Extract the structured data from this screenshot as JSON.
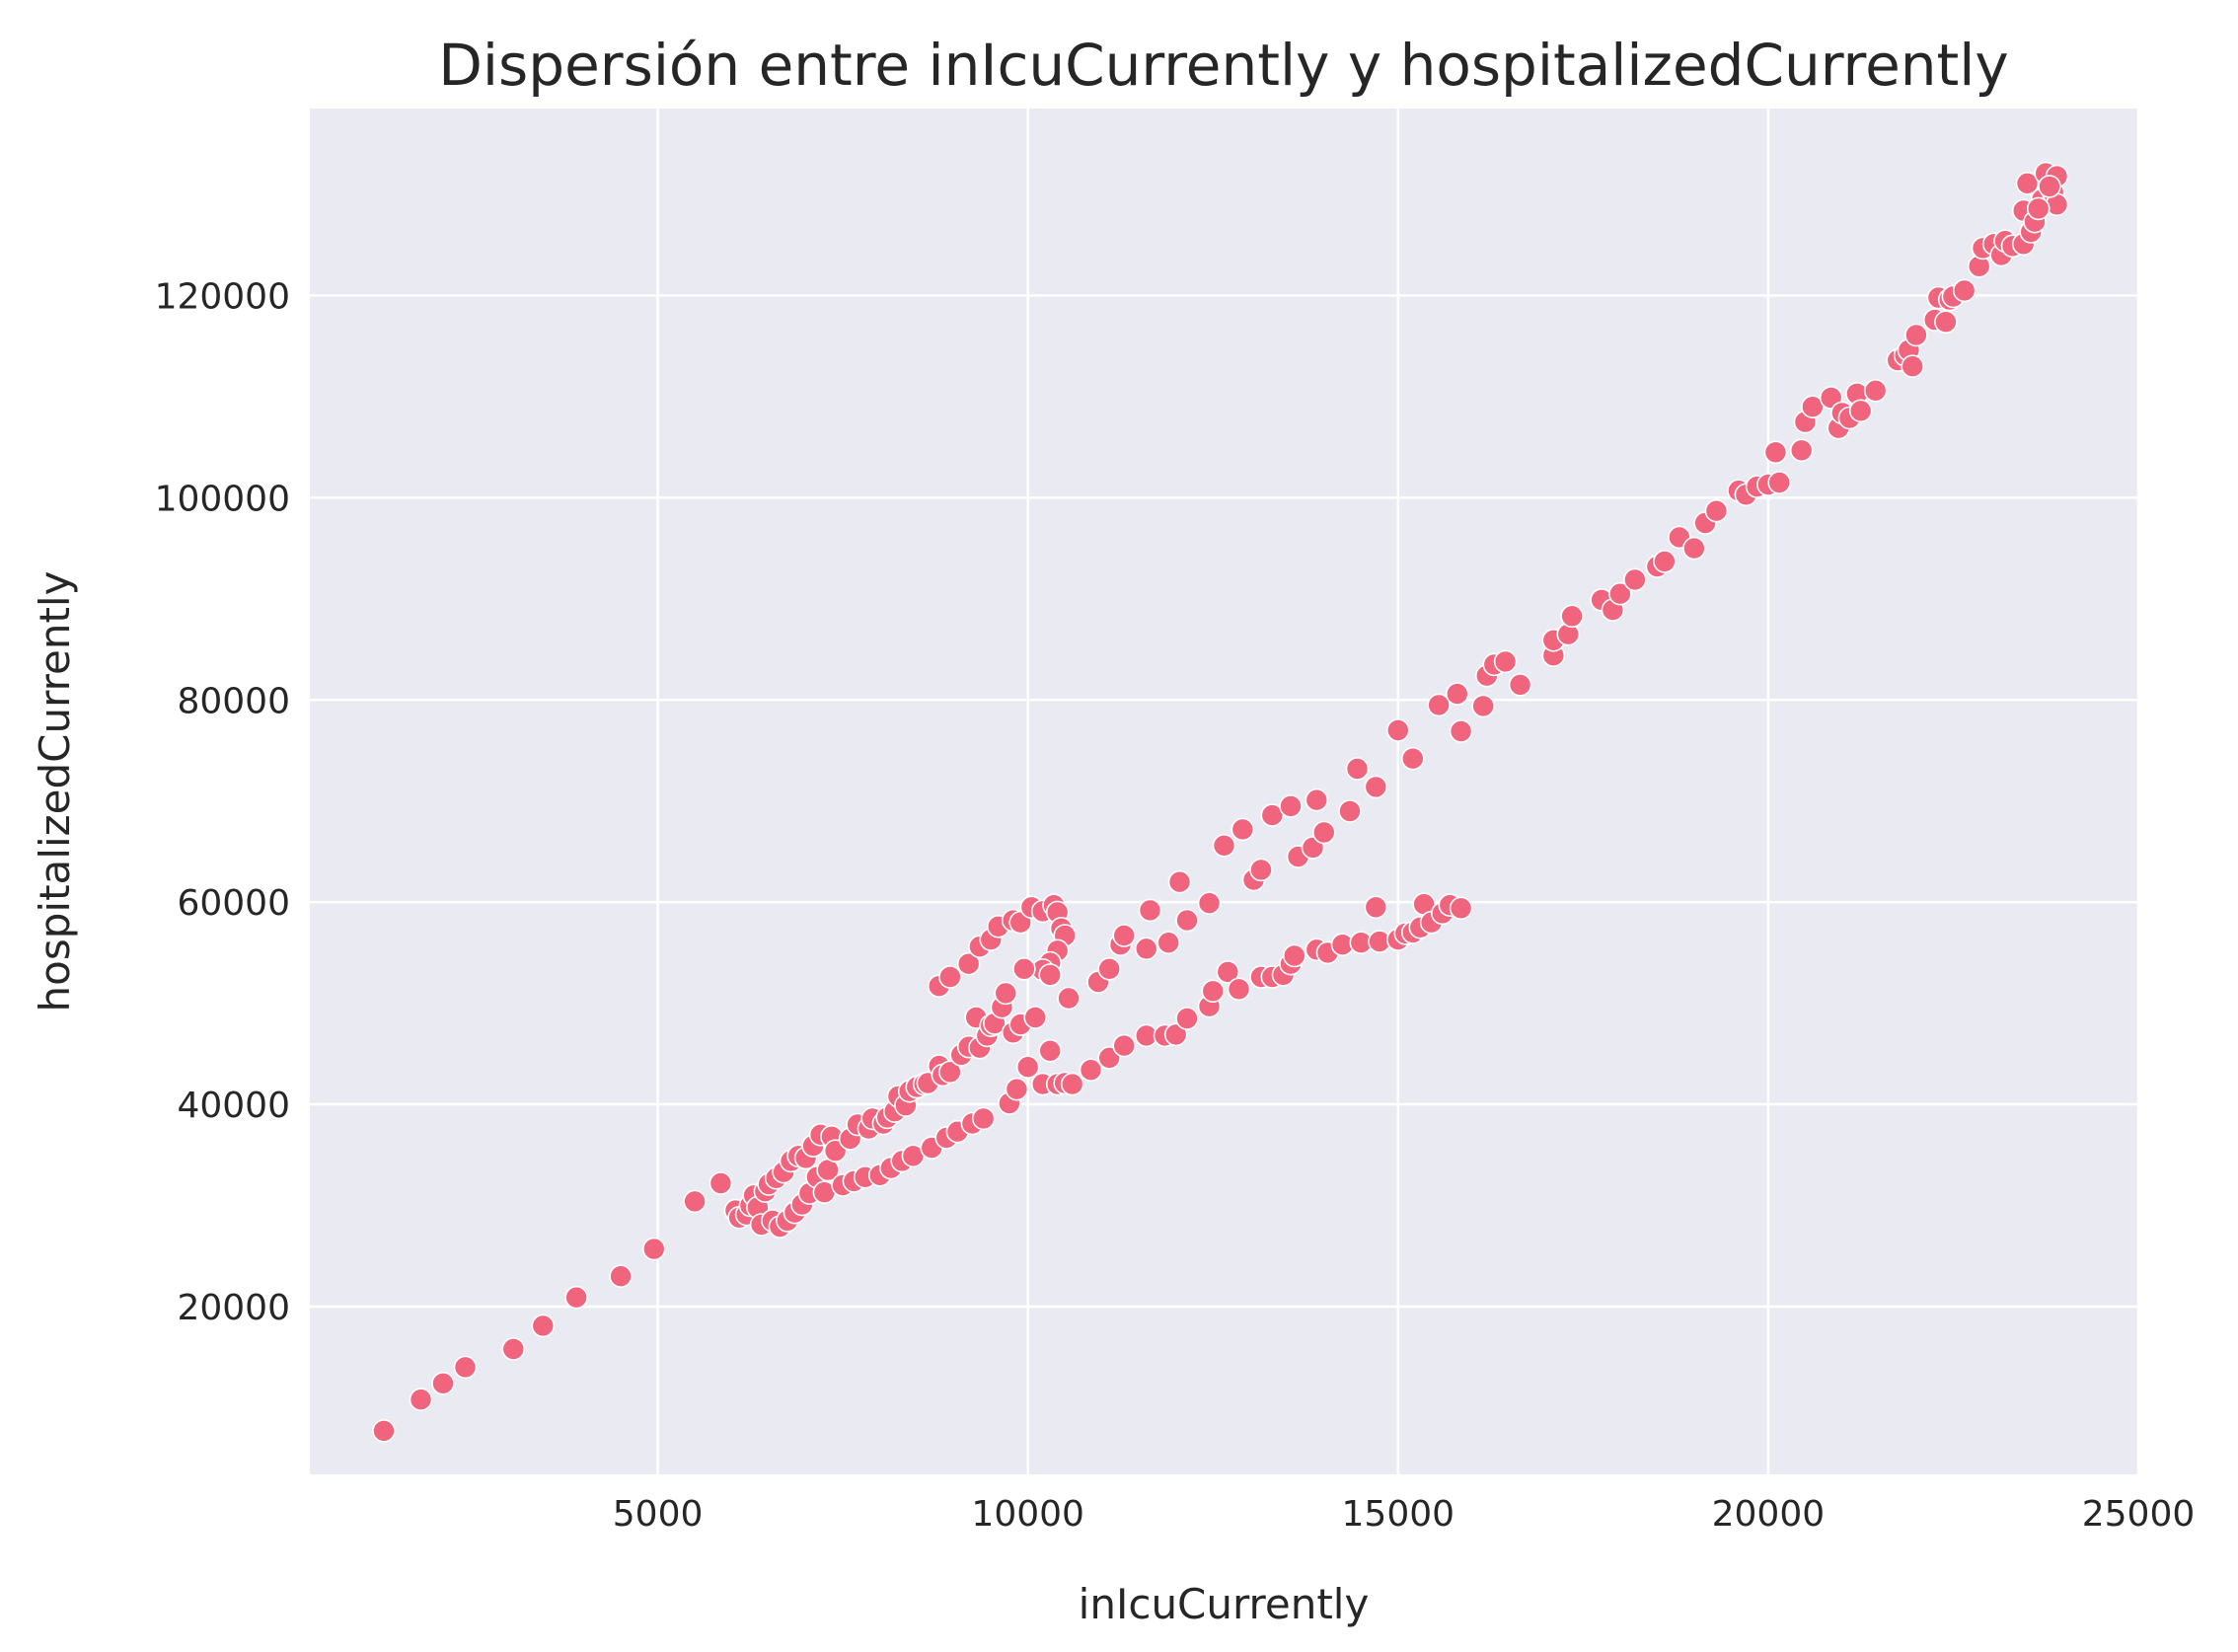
{
  "chart_data": {
    "type": "scatter",
    "title": "Dispersión entre inIcuCurrently y hospitalizedCurrently",
    "xlabel": "inIcuCurrently",
    "ylabel": "hospitalizedCurrently",
    "xlim": [
      300,
      25000
    ],
    "ylim": [
      3400,
      138500
    ],
    "xticks": [
      5000,
      10000,
      15000,
      20000,
      25000
    ],
    "yticks": [
      20000,
      40000,
      60000,
      80000,
      100000,
      120000
    ],
    "grid": true,
    "colors": {
      "background": "#eaeaf2",
      "grid": "#ffffff",
      "marker": "#f0657d",
      "marker_edge": "#ffffff",
      "text": "#262626"
    },
    "series": [
      {
        "points": [
          [
            1300,
            7700
          ],
          [
            1800,
            10800
          ],
          [
            2100,
            12400
          ],
          [
            2400,
            14000
          ],
          [
            3050,
            15800
          ],
          [
            3450,
            18100
          ],
          [
            3900,
            20900
          ],
          [
            4500,
            23000
          ],
          [
            4950,
            25700
          ],
          [
            5500,
            30400
          ],
          [
            5850,
            32200
          ],
          [
            6050,
            29500
          ],
          [
            6100,
            28800
          ],
          [
            6200,
            29100
          ],
          [
            6250,
            30000
          ],
          [
            6300,
            31000
          ],
          [
            6350,
            29800
          ],
          [
            6400,
            28100
          ],
          [
            6450,
            31400
          ],
          [
            6500,
            32100
          ],
          [
            6550,
            28500
          ],
          [
            6600,
            32700
          ],
          [
            6650,
            27900
          ],
          [
            6700,
            33300
          ],
          [
            6750,
            28500
          ],
          [
            6800,
            34400
          ],
          [
            6850,
            29300
          ],
          [
            6900,
            34900
          ],
          [
            6950,
            30100
          ],
          [
            7000,
            34700
          ],
          [
            7050,
            31200
          ],
          [
            7100,
            35900
          ],
          [
            7150,
            32800
          ],
          [
            7200,
            37000
          ],
          [
            7250,
            31300
          ],
          [
            7300,
            33500
          ],
          [
            7350,
            36800
          ],
          [
            7400,
            35400
          ],
          [
            7500,
            32000
          ],
          [
            7600,
            36600
          ],
          [
            7650,
            32400
          ],
          [
            7700,
            38000
          ],
          [
            7800,
            32800
          ],
          [
            7850,
            37600
          ],
          [
            7900,
            38600
          ],
          [
            8000,
            33000
          ],
          [
            8050,
            38100
          ],
          [
            8100,
            38700
          ],
          [
            8150,
            33700
          ],
          [
            8200,
            39300
          ],
          [
            8250,
            40800
          ],
          [
            8300,
            34400
          ],
          [
            8350,
            39900
          ],
          [
            8400,
            41300
          ],
          [
            8450,
            34900
          ],
          [
            8500,
            41700
          ],
          [
            8600,
            42000
          ],
          [
            8650,
            42100
          ],
          [
            8700,
            35700
          ],
          [
            8800,
            43800
          ],
          [
            8850,
            42900
          ],
          [
            8900,
            36700
          ],
          [
            8950,
            43200
          ],
          [
            9050,
            37300
          ],
          [
            9100,
            44900
          ],
          [
            9200,
            45700
          ],
          [
            9250,
            38100
          ],
          [
            9300,
            48600
          ],
          [
            9350,
            45600
          ],
          [
            9400,
            38600
          ],
          [
            9450,
            46800
          ],
          [
            9500,
            47800
          ],
          [
            9550,
            48000
          ],
          [
            9650,
            49600
          ],
          [
            9700,
            51000
          ],
          [
            9750,
            40100
          ],
          [
            9800,
            47100
          ],
          [
            9850,
            41500
          ],
          [
            9900,
            47900
          ],
          [
            10000,
            43700
          ],
          [
            10100,
            48600
          ],
          [
            10200,
            42000
          ],
          [
            10300,
            45300
          ],
          [
            10400,
            42000
          ],
          [
            10500,
            42100
          ],
          [
            10600,
            42000
          ],
          [
            10850,
            43400
          ],
          [
            11100,
            44600
          ],
          [
            11300,
            45800
          ],
          [
            11600,
            46800
          ],
          [
            11850,
            46800
          ],
          [
            12000,
            46900
          ],
          [
            12150,
            48500
          ],
          [
            12450,
            49700
          ],
          [
            12500,
            51200
          ],
          [
            12700,
            53100
          ],
          [
            12850,
            51400
          ],
          [
            13150,
            52600
          ],
          [
            13300,
            52600
          ],
          [
            13450,
            52800
          ],
          [
            13550,
            53900
          ],
          [
            13600,
            54700
          ],
          [
            13900,
            55300
          ],
          [
            14050,
            55000
          ],
          [
            14250,
            55800
          ],
          [
            14500,
            56000
          ],
          [
            14700,
            59500
          ],
          [
            14750,
            56100
          ],
          [
            15000,
            56300
          ],
          [
            15100,
            56900
          ],
          [
            15200,
            57000
          ],
          [
            15300,
            57500
          ],
          [
            15350,
            59800
          ],
          [
            15450,
            58000
          ],
          [
            15600,
            58900
          ],
          [
            15700,
            59700
          ],
          [
            15850,
            59400
          ],
          [
            8800,
            51700
          ],
          [
            8950,
            52600
          ],
          [
            9200,
            53900
          ],
          [
            9350,
            55600
          ],
          [
            9500,
            56300
          ],
          [
            9600,
            57600
          ],
          [
            9800,
            58200
          ],
          [
            9900,
            58000
          ],
          [
            10050,
            59500
          ],
          [
            10200,
            59100
          ],
          [
            10350,
            59700
          ],
          [
            10400,
            59000
          ],
          [
            10450,
            57400
          ],
          [
            10500,
            56700
          ],
          [
            10400,
            55200
          ],
          [
            10300,
            54000
          ],
          [
            10200,
            53300
          ],
          [
            9950,
            53400
          ],
          [
            10300,
            52800
          ],
          [
            10550,
            50500
          ],
          [
            10950,
            52100
          ],
          [
            11100,
            53400
          ],
          [
            11250,
            55800
          ],
          [
            11300,
            56700
          ],
          [
            11600,
            55400
          ],
          [
            11650,
            59200
          ],
          [
            11900,
            56000
          ],
          [
            12050,
            62000
          ],
          [
            12150,
            58200
          ],
          [
            12450,
            59900
          ],
          [
            12650,
            65600
          ],
          [
            12900,
            67200
          ],
          [
            13050,
            62200
          ],
          [
            13150,
            63200
          ],
          [
            13300,
            68600
          ],
          [
            13550,
            69500
          ],
          [
            13650,
            64500
          ],
          [
            13850,
            65400
          ],
          [
            13900,
            70100
          ],
          [
            14000,
            66900
          ],
          [
            14350,
            69000
          ],
          [
            14450,
            73200
          ],
          [
            14700,
            71400
          ],
          [
            15000,
            77000
          ],
          [
            15200,
            74200
          ],
          [
            15550,
            79500
          ],
          [
            15800,
            80600
          ],
          [
            15850,
            76900
          ],
          [
            16150,
            79400
          ],
          [
            16200,
            82400
          ],
          [
            16300,
            83500
          ],
          [
            16450,
            83800
          ],
          [
            16650,
            81500
          ],
          [
            17100,
            84400
          ],
          [
            17100,
            85900
          ],
          [
            17300,
            86500
          ],
          [
            17350,
            88300
          ],
          [
            17750,
            89900
          ],
          [
            17900,
            88900
          ],
          [
            18000,
            90500
          ],
          [
            18200,
            91900
          ],
          [
            18500,
            93200
          ],
          [
            18600,
            93700
          ],
          [
            18800,
            96100
          ],
          [
            19000,
            95000
          ],
          [
            19150,
            97500
          ],
          [
            19300,
            98700
          ],
          [
            19600,
            100700
          ],
          [
            19700,
            100300
          ],
          [
            19850,
            101100
          ],
          [
            20000,
            101300
          ],
          [
            20150,
            101500
          ],
          [
            20100,
            104500
          ],
          [
            20450,
            104700
          ],
          [
            20500,
            107500
          ],
          [
            20600,
            109000
          ],
          [
            20850,
            109900
          ],
          [
            20950,
            106900
          ],
          [
            21000,
            108400
          ],
          [
            21100,
            107900
          ],
          [
            21200,
            110300
          ],
          [
            21250,
            108600
          ],
          [
            21450,
            110600
          ],
          [
            21750,
            113600
          ],
          [
            21850,
            114100
          ],
          [
            21900,
            114600
          ],
          [
            21950,
            113000
          ],
          [
            22000,
            116100
          ],
          [
            22250,
            117600
          ],
          [
            22300,
            119800
          ],
          [
            22400,
            117400
          ],
          [
            22450,
            119600
          ],
          [
            22500,
            119900
          ],
          [
            22650,
            120500
          ],
          [
            22850,
            122900
          ],
          [
            22900,
            124700
          ],
          [
            23050,
            125100
          ],
          [
            23150,
            124000
          ],
          [
            23200,
            125400
          ],
          [
            23300,
            124900
          ],
          [
            23450,
            125100
          ],
          [
            23450,
            128400
          ],
          [
            23500,
            131100
          ],
          [
            23550,
            126300
          ],
          [
            23600,
            127300
          ],
          [
            23700,
            129500
          ],
          [
            23750,
            132100
          ],
          [
            23850,
            130200
          ],
          [
            23900,
            131800
          ],
          [
            23900,
            129000
          ],
          [
            23800,
            130800
          ],
          [
            23650,
            128600
          ]
        ]
      }
    ]
  }
}
